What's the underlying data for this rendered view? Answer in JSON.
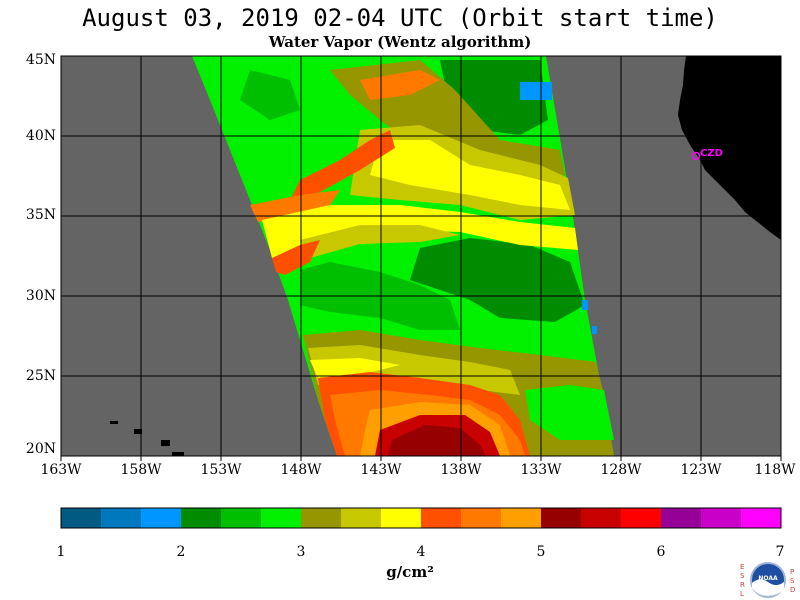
{
  "header": {
    "title": "August 03, 2019  02-04 UTC  (Orbit start time)",
    "subtitle": "Water Vapor (Wentz algorithm)"
  },
  "map": {
    "lat_labels": [
      "45N",
      "40N",
      "35N",
      "30N",
      "25N",
      "20N"
    ],
    "lon_labels": [
      "163W",
      "158W",
      "153W",
      "148W",
      "143W",
      "138W",
      "133W",
      "128W",
      "123W",
      "118W"
    ],
    "station_label": "CZD",
    "colors": {
      "background": "#646464",
      "land": "#000000",
      "grid": "#000000",
      "station": "#ff00ff"
    }
  },
  "colorbar": {
    "ticks": [
      "1",
      "2",
      "3",
      "4",
      "5",
      "6",
      "7"
    ],
    "units": "g/cm²",
    "colors": [
      "#005a82",
      "#0078be",
      "#0096ff",
      "#008c00",
      "#00be00",
      "#00f000",
      "#969600",
      "#c8c800",
      "#ffff00",
      "#ff5000",
      "#ff7800",
      "#ffa000",
      "#960000",
      "#c80000",
      "#ff0000",
      "#960096",
      "#c800c8",
      "#ff00ff"
    ]
  },
  "logo": {
    "left_letters": [
      "E",
      "S",
      "R",
      "L"
    ],
    "right_letters": [
      "P",
      "S",
      "D"
    ],
    "name": "NOAA"
  }
}
